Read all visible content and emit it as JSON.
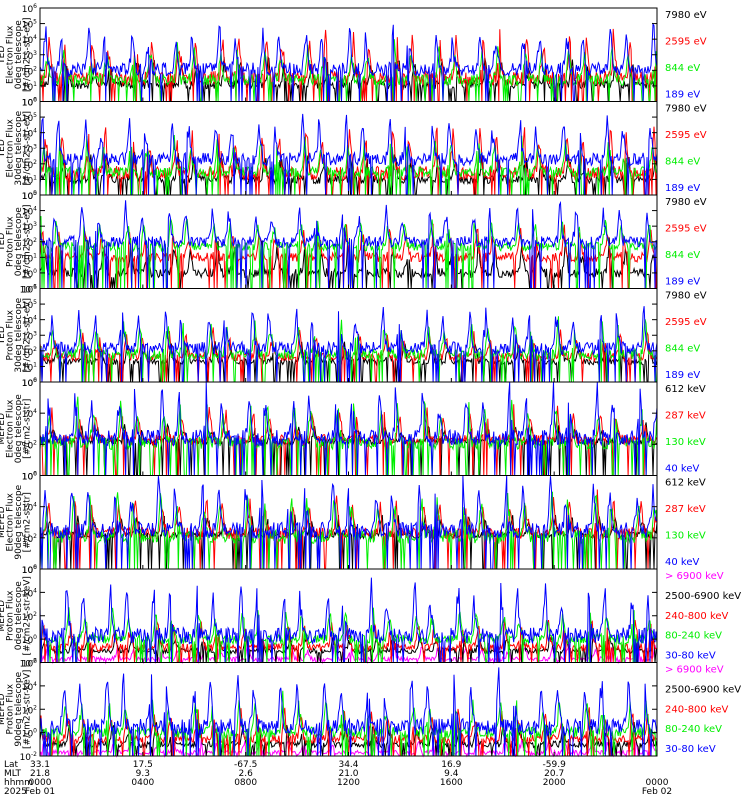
{
  "colors": {
    "black": "#000000",
    "red": "#ff0000",
    "green": "#00ee00",
    "blue": "#0000ff",
    "magenta": "#ff00ff"
  },
  "chart_data": [
    {
      "type": "line",
      "ylabel": [
        "TED",
        "Electron Flux",
        "0deg telescope",
        "[#/cm2-s-str-eV]"
      ],
      "yscale": "log",
      "ylim": [
        1,
        1000000
      ],
      "yticks": [
        {
          "base": "10",
          "exp": "0",
          "v": 1
        },
        {
          "base": "10",
          "exp": "1",
          "v": 10
        },
        {
          "base": "10",
          "exp": "2",
          "v": 100
        },
        {
          "base": "10",
          "exp": "3",
          "v": 1000
        },
        {
          "base": "10",
          "exp": "4",
          "v": 10000
        },
        {
          "base": "10",
          "exp": "5",
          "v": 100000
        },
        {
          "base": "10",
          "exp": "6",
          "v": 1000000
        }
      ],
      "series": [
        {
          "name": "7980 eV",
          "color": "#000000",
          "base": 12,
          "peak": 600
        },
        {
          "name": "2595 eV",
          "color": "#ff0000",
          "base": 30,
          "peak": 30000
        },
        {
          "name": "844 eV",
          "color": "#00ee00",
          "base": 25,
          "peak": 5000
        },
        {
          "name": "189 eV",
          "color": "#0000ff",
          "base": 120,
          "peak": 60000
        }
      ]
    },
    {
      "type": "line",
      "ylabel": [
        "TED",
        "Electron Flux",
        "30deg telescope",
        "[#/cm2-s-str-eV]"
      ],
      "yscale": "log",
      "ylim": [
        1,
        1000000
      ],
      "yticks": [
        {
          "base": "10",
          "exp": "0",
          "v": 1
        },
        {
          "base": "10",
          "exp": "1",
          "v": 10
        },
        {
          "base": "10",
          "exp": "2",
          "v": 100
        },
        {
          "base": "10",
          "exp": "3",
          "v": 1000
        },
        {
          "base": "10",
          "exp": "4",
          "v": 10000
        },
        {
          "base": "10",
          "exp": "5",
          "v": 100000
        },
        {
          "base": "10",
          "exp": "6",
          "v": 1000000
        }
      ],
      "series": [
        {
          "name": "7980 eV",
          "color": "#000000",
          "base": 10,
          "peak": 500
        },
        {
          "name": "2595 eV",
          "color": "#ff0000",
          "base": 25,
          "peak": 20000
        },
        {
          "name": "844 eV",
          "color": "#00ee00",
          "base": 30,
          "peak": 4000
        },
        {
          "name": "189 eV",
          "color": "#0000ff",
          "base": 200,
          "peak": 80000
        }
      ]
    },
    {
      "type": "line",
      "ylabel": [
        "TED",
        "Proton Flux",
        "0deg telescope",
        "[#/cm2-s-str-eV]"
      ],
      "yscale": "log",
      "ylim": [
        0.1,
        100000
      ],
      "yticks": [
        {
          "base": "10",
          "exp": "-1",
          "v": 0.1
        },
        {
          "base": "10",
          "exp": "0",
          "v": 1
        },
        {
          "base": "10",
          "exp": "1",
          "v": 10
        },
        {
          "base": "10",
          "exp": "2",
          "v": 100
        },
        {
          "base": "10",
          "exp": "3",
          "v": 1000
        },
        {
          "base": "10",
          "exp": "4",
          "v": 10000
        },
        {
          "base": "10",
          "exp": "5",
          "v": 100000
        }
      ],
      "series": [
        {
          "name": "7980 eV",
          "color": "#000000",
          "base": 1,
          "peak": 80
        },
        {
          "name": "2595 eV",
          "color": "#ff0000",
          "base": 10,
          "peak": 800
        },
        {
          "name": "844 eV",
          "color": "#00ee00",
          "base": 50,
          "peak": 3000
        },
        {
          "name": "189 eV",
          "color": "#0000ff",
          "base": 100,
          "peak": 20000
        }
      ]
    },
    {
      "type": "line",
      "ylabel": [
        "TED",
        "Proton Flux",
        "30deg telescope",
        "[#/cm2-s-str-eV]"
      ],
      "yscale": "log",
      "ylim": [
        1,
        1000000
      ],
      "yticks": [
        {
          "base": "10",
          "exp": "0",
          "v": 1
        },
        {
          "base": "10",
          "exp": "1",
          "v": 10
        },
        {
          "base": "10",
          "exp": "2",
          "v": 100
        },
        {
          "base": "10",
          "exp": "3",
          "v": 1000
        },
        {
          "base": "10",
          "exp": "4",
          "v": 10000
        },
        {
          "base": "10",
          "exp": "5",
          "v": 100000
        },
        {
          "base": "10",
          "exp": "6",
          "v": 1000000
        }
      ],
      "series": [
        {
          "name": "7980 eV",
          "color": "#000000",
          "base": 20,
          "peak": 300
        },
        {
          "name": "2595 eV",
          "color": "#ff0000",
          "base": 40,
          "peak": 2000
        },
        {
          "name": "844 eV",
          "color": "#00ee00",
          "base": 60,
          "peak": 8000
        },
        {
          "name": "189 eV",
          "color": "#0000ff",
          "base": 150,
          "peak": 50000
        }
      ]
    },
    {
      "type": "line",
      "ylabel": [
        "MEPED",
        "Electron Flux",
        "0deg telescope",
        "[#/cm2-s-str]"
      ],
      "yscale": "log",
      "ylim": [
        1,
        1000000
      ],
      "yticks": [
        {
          "base": "10",
          "exp": "0",
          "v": 1
        },
        {
          "base": "10",
          "exp": "2",
          "v": 100
        },
        {
          "base": "10",
          "exp": "4",
          "v": 10000
        },
        {
          "base": "10",
          "exp": "6",
          "v": 1000000
        }
      ],
      "series": [
        {
          "name": "612 keV",
          "color": "#000000",
          "base": 150,
          "peak": 2000
        },
        {
          "name": "287 keV",
          "color": "#ff0000",
          "base": 200,
          "peak": 20000
        },
        {
          "name": "130 keV",
          "color": "#00ee00",
          "base": 120,
          "peak": 50000
        },
        {
          "name": "40 keV",
          "color": "#0000ff",
          "base": 250,
          "peak": 500000
        }
      ]
    },
    {
      "type": "line",
      "ylabel": [
        "MEPED",
        "Electron Flux",
        "90deg telescope",
        "[#/cm2-s-str]"
      ],
      "yscale": "log",
      "ylim": [
        1,
        1000000
      ],
      "yticks": [
        {
          "base": "10",
          "exp": "0",
          "v": 1
        },
        {
          "base": "10",
          "exp": "2",
          "v": 100
        },
        {
          "base": "10",
          "exp": "4",
          "v": 10000
        },
        {
          "base": "10",
          "exp": "6",
          "v": 1000000
        }
      ],
      "series": [
        {
          "name": "612 keV",
          "color": "#000000",
          "base": 150,
          "peak": 3000
        },
        {
          "name": "287 keV",
          "color": "#ff0000",
          "base": 200,
          "peak": 40000
        },
        {
          "name": "130 keV",
          "color": "#00ee00",
          "base": 120,
          "peak": 100000
        },
        {
          "name": "40 keV",
          "color": "#0000ff",
          "base": 300,
          "peak": 600000
        }
      ]
    },
    {
      "type": "line",
      "ylabel": [
        "MEPED",
        "Proton Flux",
        "0deg telescope",
        "[#/cm2-s-str-keV]"
      ],
      "yscale": "log",
      "ylim": [
        0.01,
        1000000
      ],
      "yticks": [
        {
          "base": "10",
          "exp": "-2",
          "v": 0.01
        },
        {
          "base": "10",
          "exp": "0",
          "v": 1
        },
        {
          "base": "10",
          "exp": "2",
          "v": 100
        },
        {
          "base": "10",
          "exp": "4",
          "v": 10000
        },
        {
          "base": "10",
          "exp": "6",
          "v": 1000000
        }
      ],
      "series": [
        {
          "name": "> 6900 keV",
          "color": "#ff00ff",
          "base": 0.02,
          "peak": 0.3
        },
        {
          "name": "2500-6900 keV",
          "color": "#000000",
          "base": 0.1,
          "peak": 3
        },
        {
          "name": "240-800 keV",
          "color": "#ff0000",
          "base": 0.2,
          "peak": 30
        },
        {
          "name": "80-240 keV",
          "color": "#00ee00",
          "base": 1,
          "peak": 500
        },
        {
          "name": "30-80 keV",
          "color": "#0000ff",
          "base": 2,
          "peak": 50000
        }
      ]
    },
    {
      "type": "line",
      "ylabel": [
        "MEPED",
        "Proton Flux",
        "90deg telescope",
        "[#/cm2-s-str-keV]"
      ],
      "yscale": "log",
      "ylim": [
        0.01,
        1000000
      ],
      "yticks": [
        {
          "base": "10",
          "exp": "-2",
          "v": 0.01
        },
        {
          "base": "10",
          "exp": "0",
          "v": 1
        },
        {
          "base": "10",
          "exp": "2",
          "v": 100
        },
        {
          "base": "10",
          "exp": "4",
          "v": 10000
        },
        {
          "base": "10",
          "exp": "6",
          "v": 1000000
        }
      ],
      "series": [
        {
          "name": "> 6900 keV",
          "color": "#ff00ff",
          "base": 0.02,
          "peak": 0.3
        },
        {
          "name": "2500-6900 keV",
          "color": "#000000",
          "base": 0.1,
          "peak": 5
        },
        {
          "name": "240-800 keV",
          "color": "#ff0000",
          "base": 0.3,
          "peak": 80
        },
        {
          "name": "80-240 keV",
          "color": "#00ee00",
          "base": 1,
          "peak": 1000
        },
        {
          "name": "30-80 keV",
          "color": "#0000ff",
          "base": 3,
          "peak": 100000
        }
      ]
    }
  ],
  "xaxis": {
    "row_labels": [
      "Lat",
      "MLT",
      "hhmm",
      "2025"
    ],
    "ticks": [
      {
        "lat": "33.1",
        "mlt": "21.8",
        "hhmm": "0000",
        "date": "Feb 01"
      },
      {
        "lat": "17.5",
        "mlt": "9.3",
        "hhmm": "0400",
        "date": ""
      },
      {
        "lat": "-67.5",
        "mlt": "2.6",
        "hhmm": "0800",
        "date": ""
      },
      {
        "lat": "34.4",
        "mlt": "21.0",
        "hhmm": "1200",
        "date": ""
      },
      {
        "lat": "16.9",
        "mlt": "9.4",
        "hhmm": "1600",
        "date": ""
      },
      {
        "lat": "-59.9",
        "mlt": "20.7",
        "hhmm": "2000",
        "date": ""
      },
      {
        "lat": "",
        "mlt": "",
        "hhmm": "0000",
        "date": "Feb 02"
      }
    ],
    "range_hours": [
      0,
      24
    ]
  }
}
